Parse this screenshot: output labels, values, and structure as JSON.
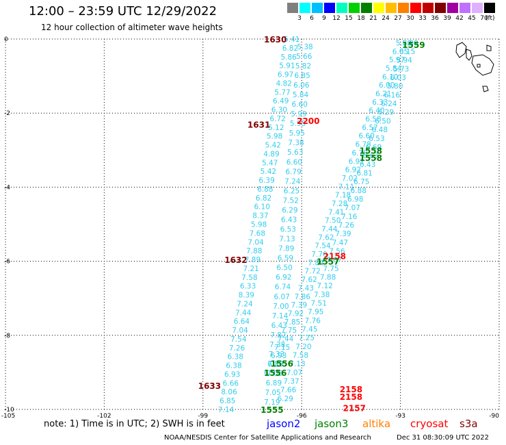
{
  "header": {
    "title": "12:00 – 23:59 UTC 12/29/2022",
    "subtitle": "12 hour collection of altimeter wave heights"
  },
  "color_scale": {
    "unit": "(ft)",
    "labels": [
      "3",
      "6",
      "9",
      "12",
      "15",
      "18",
      "21",
      "24",
      "27",
      "30",
      "33",
      "36",
      "39",
      "42",
      "45",
      "70"
    ],
    "colors": [
      "#7f7f7f",
      "#00ffff",
      "#00bfff",
      "#0000ff",
      "#00ffbf",
      "#00d000",
      "#008000",
      "#ffff00",
      "#ffbf00",
      "#ff8000",
      "#ff0000",
      "#c00000",
      "#800000",
      "#a000a0",
      "#c070ff",
      "#e0b0ff",
      "#000000"
    ]
  },
  "note": "note:  1) Time is in UTC;  2) SWH is in feet",
  "satellites": [
    {
      "name": "jason2",
      "color": "#0000ff"
    },
    {
      "name": "jason3",
      "color": "#008000"
    },
    {
      "name": "altika",
      "color": "#ff8000"
    },
    {
      "name": "cryosat",
      "color": "#ff0000"
    },
    {
      "name": "s3a",
      "color": "#800000"
    }
  ],
  "footer": "NOAA/NESDIS Center for Satellite Applications and Research",
  "footer_time": "Dec 31 08:30:09 UTC 2022",
  "chart_data": {
    "type": "scatter",
    "xlim": [
      -105,
      -90
    ],
    "ylim": [
      -10,
      0
    ],
    "x_ticks": [
      "-105",
      "-102",
      "-99",
      "-96",
      "-93",
      "-90"
    ],
    "y_ticks": [
      "0",
      "-2",
      "-4",
      "-6",
      "-8",
      "-10"
    ],
    "grid": true,
    "swh_color": "#33ccee",
    "time_labels": [
      {
        "text": "1630",
        "lon": -96.8,
        "lat": 0.0,
        "color": "#800000"
      },
      {
        "text": "1631",
        "lon": -97.3,
        "lat": -2.3,
        "color": "#800000"
      },
      {
        "text": "1632",
        "lon": -98.0,
        "lat": -5.95,
        "color": "#800000"
      },
      {
        "text": "1633",
        "lon": -98.8,
        "lat": -9.35,
        "color": "#800000"
      },
      {
        "text": "2200",
        "lon": -95.8,
        "lat": -2.2,
        "color": "#ff0000"
      },
      {
        "text": "2158",
        "lon": -95.0,
        "lat": -5.85,
        "color": "#ff0000"
      },
      {
        "text": "2158",
        "lon": -94.5,
        "lat": -9.45,
        "color": "#ff0000"
      },
      {
        "text": "2158",
        "lon": -94.5,
        "lat": -9.65,
        "color": "#ff0000"
      },
      {
        "text": "2157",
        "lon": -94.4,
        "lat": -9.95,
        "color": "#ff0000"
      },
      {
        "text": "1559",
        "lon": -92.6,
        "lat": -0.15,
        "color": "#008000"
      },
      {
        "text": "1558",
        "lon": -93.9,
        "lat": -3.0,
        "color": "#008000"
      },
      {
        "text": "1558",
        "lon": -93.9,
        "lat": -3.2,
        "color": "#008000"
      },
      {
        "text": "1557",
        "lon": -95.2,
        "lat": -6.0,
        "color": "#008000"
      },
      {
        "text": "1556",
        "lon": -96.6,
        "lat": -8.75,
        "color": "#008000"
      },
      {
        "text": "1556",
        "lon": -96.8,
        "lat": -9.0,
        "color": "#008000"
      },
      {
        "text": "1555",
        "lon": -96.9,
        "lat": -10.0,
        "color": "#008000"
      }
    ],
    "tracks": [
      {
        "lon_start": -96.3,
        "lon_end": -98.3,
        "lat_start": 0.0,
        "lat_end": -10.0,
        "values": [
          "5.41",
          "6.82",
          "5.86",
          "5.91",
          "6.97",
          "4.82",
          "5.77",
          "6.49",
          "6.30",
          "6.72",
          "5.12",
          "5.98",
          "5.42",
          "4.89",
          "5.47",
          "5.42",
          "6.39",
          "6.88",
          "6.82",
          "6.10",
          "8.37",
          "5.98",
          "7.68",
          "7.04",
          "7.88",
          "7.89",
          "7.21",
          "7.58",
          "6.33",
          "8.39",
          "7.24",
          "7.44",
          "6.64",
          "7.04",
          "7.54",
          "7.26",
          "6.38",
          "6.38",
          "6.93",
          "6.66",
          "8.06",
          "6.85",
          "7.14"
        ]
      },
      {
        "lon_start": -95.9,
        "lon_end": -96.9,
        "lat_start": -0.2,
        "lat_end": -9.8,
        "values": [
          "5.38",
          "5.66",
          "5.82",
          "6.85",
          "6.06",
          "5.84",
          "6.60",
          "5.99",
          "5.95",
          "5.95",
          "7.38",
          "5.63",
          "6.60",
          "6.79",
          "7.24",
          "6.25",
          "7.52",
          "6.29",
          "6.43",
          "6.53",
          "7.13",
          "7.89",
          "6.59",
          "6.50",
          "6.92",
          "6.74",
          "6.07",
          "7.00",
          "7.14",
          "6.43",
          "7.82",
          "7.38",
          "7.33",
          "7.12",
          "7.06",
          "6.89",
          "7.05",
          "7.19"
        ]
      },
      {
        "lon_start": -92.7,
        "lon_end": -96.5,
        "lat_start": -0.1,
        "lat_end": -9.7,
        "values": [
          "5.90",
          "6.15",
          "5.94",
          "5.73",
          "6.03",
          "5.80",
          "6.16",
          "6.24",
          "6.29",
          "6.50",
          "6.48",
          "6.53",
          "6.69",
          "6.63",
          "6.43",
          "6.81",
          "6.75",
          "6.88",
          "6.98",
          "7.07",
          "7.16",
          "7.26",
          "7.39",
          "7.47",
          "7.56",
          "7.67",
          "7.75",
          "7.88",
          "7.12",
          "7.38",
          "7.51",
          "7.95",
          "7.76",
          "7.45",
          "7.25",
          "7.20",
          "7.58",
          "7.13",
          "7.07",
          "7.37",
          "7.66",
          "6.29"
        ]
      },
      {
        "lon_start": -92.9,
        "lon_end": -96.9,
        "lat_start": -0.1,
        "lat_end": -9.0,
        "values": [
          "5.80",
          "6.05",
          "5.97",
          "5.84",
          "6.10",
          "6.00",
          "6.21",
          "6.33",
          "6.40",
          "6.58",
          "6.57",
          "6.60",
          "6.78",
          "6.70",
          "6.91",
          "6.92",
          "7.02",
          "7.11",
          "7.18",
          "7.28",
          "7.41",
          "7.50",
          "7.44",
          "7.62",
          "7.54",
          "7.70",
          "7.84",
          "7.72",
          "7.62",
          "7.43",
          "7.86",
          "7.39",
          "7.92",
          "7.85",
          "7.75",
          "7.44",
          "7.15",
          "6.93",
          "6.89",
          "6.92"
        ]
      }
    ]
  }
}
